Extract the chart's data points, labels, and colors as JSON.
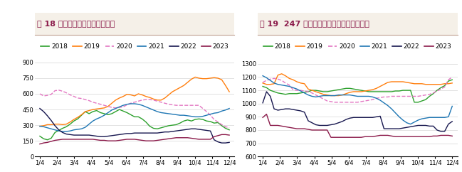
{
  "title1": "图 18 港口焦煤库存呢：周：万吨",
  "title2": "图 19  247 家样本钢厂焦煤库存：周：万吨",
  "x_labels": [
    "1/4",
    "2/4",
    "3/4",
    "4/4",
    "5/4",
    "6/4",
    "7/4",
    "8/4",
    "9/4",
    "10/4",
    "11/4",
    "12/4"
  ],
  "title_color": "#8B1A4A",
  "title_fontsize": 8.0,
  "legend_fontsize": 6.5,
  "tick_fontsize": 6.0,
  "colors": {
    "2018": "#2ca02c",
    "2019": "#ff7f0e",
    "2020": "#e377c2",
    "2021": "#1f77b4",
    "2022": "#17174f",
    "2023": "#8B1A4A"
  },
  "chart1": {
    "ylim": [
      0,
      950
    ],
    "yticks": [
      0,
      150,
      300,
      450,
      600,
      750,
      900
    ],
    "2018": [
      195,
      170,
      160,
      175,
      230,
      250,
      270,
      285,
      310,
      340,
      360,
      395,
      430,
      410,
      430,
      440,
      420,
      410,
      400,
      410,
      430,
      450,
      435,
      420,
      400,
      380,
      380,
      360,
      330,
      290,
      270,
      265,
      275,
      285,
      295,
      300,
      305,
      320,
      340,
      350,
      340,
      355,
      360,
      355,
      340,
      335,
      320,
      325,
      295,
      270,
      255
    ],
    "2019": [
      290,
      295,
      305,
      305,
      310,
      310,
      305,
      310,
      330,
      355,
      375,
      400,
      430,
      440,
      450,
      455,
      460,
      465,
      480,
      510,
      540,
      560,
      575,
      595,
      590,
      580,
      600,
      590,
      575,
      565,
      550,
      540,
      540,
      560,
      590,
      620,
      640,
      660,
      680,
      710,
      740,
      760,
      750,
      745,
      745,
      750,
      755,
      750,
      735,
      680,
      620
    ],
    "2020": [
      600,
      580,
      585,
      595,
      630,
      635,
      625,
      610,
      590,
      575,
      560,
      555,
      545,
      535,
      520,
      510,
      500,
      490,
      480,
      470,
      465,
      470,
      475,
      495,
      510,
      520,
      530,
      540,
      545,
      545,
      540,
      530,
      520,
      510,
      500,
      495,
      490,
      490,
      490,
      490,
      490,
      490,
      490,
      460,
      430,
      395,
      355,
      330,
      305,
      285,
      275
    ],
    "2021": [
      290,
      285,
      275,
      265,
      255,
      245,
      240,
      240,
      245,
      255,
      260,
      265,
      280,
      310,
      340,
      360,
      375,
      395,
      420,
      445,
      460,
      475,
      490,
      500,
      505,
      505,
      500,
      490,
      475,
      460,
      445,
      430,
      420,
      415,
      410,
      405,
      400,
      395,
      395,
      390,
      385,
      380,
      380,
      385,
      395,
      405,
      415,
      420,
      435,
      445,
      460
    ],
    "2022": [
      460,
      430,
      390,
      345,
      295,
      255,
      230,
      215,
      210,
      205,
      205,
      205,
      205,
      205,
      200,
      195,
      190,
      190,
      195,
      200,
      205,
      210,
      215,
      220,
      220,
      225,
      225,
      225,
      225,
      225,
      225,
      225,
      230,
      235,
      235,
      240,
      245,
      250,
      255,
      260,
      265,
      265,
      260,
      255,
      250,
      245,
      160,
      140,
      130,
      130,
      135
    ],
    "2023": [
      120,
      130,
      135,
      145,
      155,
      160,
      165,
      165,
      165,
      165,
      165,
      165,
      165,
      165,
      165,
      160,
      155,
      155,
      150,
      150,
      150,
      155,
      160,
      165,
      165,
      165,
      160,
      155,
      150,
      150,
      150,
      155,
      160,
      165,
      170,
      175,
      180,
      180,
      180,
      180,
      175,
      170,
      165,
      165,
      165,
      165,
      190,
      200,
      210,
      210,
      205
    ]
  },
  "chart2": {
    "ylim": [
      600,
      1350
    ],
    "yticks": [
      600,
      700,
      800,
      900,
      1000,
      1100,
      1200,
      1300
    ],
    "2018": [
      1130,
      1120,
      1100,
      1090,
      1080,
      1075,
      1070,
      1075,
      1075,
      1075,
      1080,
      1085,
      1090,
      1100,
      1100,
      1095,
      1090,
      1090,
      1095,
      1100,
      1105,
      1110,
      1115,
      1115,
      1110,
      1105,
      1100,
      1095,
      1090,
      1090,
      1090,
      1090,
      1090,
      1090,
      1090,
      1095,
      1095,
      1100,
      1100,
      1100,
      1010,
      1010,
      1020,
      1030,
      1055,
      1075,
      1100,
      1120,
      1135,
      1170,
      1180
    ],
    "2019": [
      1155,
      1145,
      1145,
      1150,
      1215,
      1225,
      1210,
      1190,
      1180,
      1165,
      1155,
      1150,
      1110,
      1100,
      1090,
      1080,
      1070,
      1065,
      1060,
      1060,
      1060,
      1065,
      1075,
      1085,
      1090,
      1090,
      1090,
      1095,
      1100,
      1105,
      1115,
      1130,
      1145,
      1160,
      1165,
      1165,
      1165,
      1165,
      1160,
      1155,
      1150,
      1150,
      1150,
      1145,
      1145,
      1145,
      1145,
      1145,
      1150,
      1150,
      1155
    ],
    "2020": [
      1160,
      1175,
      1185,
      1190,
      1185,
      1175,
      1155,
      1140,
      1105,
      1100,
      1100,
      1095,
      1090,
      1080,
      1065,
      1050,
      1035,
      1020,
      1015,
      1010,
      1010,
      1010,
      1010,
      1010,
      1010,
      1010,
      1015,
      1020,
      1025,
      1030,
      1040,
      1045,
      1050,
      1050,
      1055,
      1055,
      1055,
      1055,
      1055,
      1055,
      1055,
      1055,
      1060,
      1065,
      1070,
      1080,
      1095,
      1110,
      1125,
      1180,
      1200
    ],
    "2021": [
      1210,
      1195,
      1175,
      1155,
      1145,
      1140,
      1135,
      1130,
      1120,
      1110,
      1095,
      1080,
      1065,
      1055,
      1050,
      1055,
      1060,
      1060,
      1060,
      1060,
      1065,
      1065,
      1065,
      1065,
      1060,
      1055,
      1055,
      1055,
      1055,
      1050,
      1040,
      1025,
      1005,
      985,
      960,
      930,
      900,
      875,
      855,
      845,
      860,
      875,
      885,
      890,
      895,
      895,
      895,
      895,
      895,
      900,
      980
    ],
    "2022": [
      1005,
      1090,
      1055,
      960,
      950,
      955,
      960,
      960,
      955,
      950,
      945,
      935,
      870,
      855,
      840,
      835,
      835,
      835,
      840,
      845,
      855,
      865,
      880,
      890,
      895,
      895,
      895,
      895,
      895,
      895,
      900,
      905,
      810,
      810,
      810,
      810,
      810,
      815,
      820,
      825,
      830,
      835,
      835,
      835,
      830,
      830,
      800,
      790,
      790,
      845,
      865
    ],
    "2023": [
      895,
      920,
      835,
      835,
      835,
      830,
      825,
      820,
      815,
      810,
      810,
      810,
      805,
      800,
      800,
      800,
      800,
      800,
      745,
      745,
      745,
      745,
      745,
      745,
      745,
      745,
      745,
      750,
      750,
      750,
      755,
      760,
      760,
      760,
      755,
      750,
      750,
      750,
      750,
      750,
      750,
      750,
      750,
      750,
      750,
      755,
      755,
      760,
      760,
      760,
      755
    ]
  },
  "bg_color": "#f5f0e8",
  "header_bg": "#f5f0e8"
}
